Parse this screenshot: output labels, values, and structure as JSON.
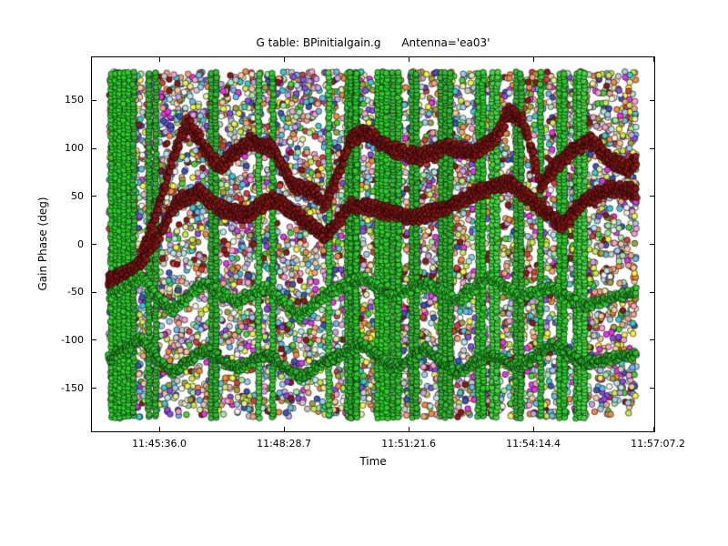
{
  "chart_data": {
    "type": "scatter",
    "title": "G table: BPinitialgain.g      Antenna='ea03'",
    "xlabel": "Time",
    "ylabel": "Gain Phase (deg)",
    "description": "Very dense multi-color calibration gain-phase scatter: thousands of small black-edged circles of random colors filling the axes from -180 to +180 deg, with bright green vertical stripes, two thick dark-red (maroon) wandering phase traces in the upper half, and bright green wandering traces in the lower half.",
    "y_ticks": [
      150,
      100,
      50,
      0,
      -50,
      -100,
      -150
    ],
    "ylim": [
      -196,
      196
    ],
    "x_ticks": {
      "labels": [
        "11:45:36.0",
        "11:48:28.7",
        "11:51:21.6",
        "11:54:14.4",
        "11:57:07.2"
      ],
      "fracs": [
        0.121,
        0.342,
        0.563,
        0.784,
        1.005
      ]
    },
    "x_data_range": [
      0.03,
      0.968
    ],
    "data_y_range": [
      -181,
      181
    ],
    "marker": {
      "shape": "circle",
      "radius_px": 3.3,
      "edge_color": "#000000",
      "edge_width": 0.6
    },
    "palette": [
      "#9ecae8",
      "#f4a07a",
      "#f7c59a",
      "#44d62c",
      "#c8e84a",
      "#f2f23d",
      "#e833e8",
      "#8a4ae8",
      "#3d52b8",
      "#3dc8c8",
      "#aee8e8",
      "#f2a0c8",
      "#d63d3d",
      "#8b1a1a",
      "#a0a03d",
      "#c8c8c8",
      "#f2f2e8",
      "#f28a3d",
      "#a0e8a0",
      "#c8a0e8",
      "#66b8e8",
      "#e8e8a0"
    ],
    "background_points": {
      "count": 7000,
      "seed": 42
    },
    "green_vertical_bars": {
      "count": 26,
      "seed": 7,
      "colors": [
        "#2ecc2e",
        "#44d644",
        "#33b833"
      ],
      "step_deg": 3.5
    },
    "series": [
      {
        "name": "maroon-phase-trace-upper",
        "color": "#8b1a1a",
        "strand_offset_deg": 4.5,
        "strands": 3,
        "waypoints": [
          [
            0.0,
            -38
          ],
          [
            0.055,
            -25
          ],
          [
            0.089,
            30
          ],
          [
            0.124,
            95
          ],
          [
            0.149,
            128
          ],
          [
            0.184,
            100
          ],
          [
            0.21,
            80
          ],
          [
            0.235,
            95
          ],
          [
            0.27,
            108
          ],
          [
            0.313,
            100
          ],
          [
            0.347,
            62
          ],
          [
            0.39,
            55
          ],
          [
            0.41,
            40
          ],
          [
            0.459,
            110
          ],
          [
            0.485,
            118
          ],
          [
            0.536,
            100
          ],
          [
            0.588,
            92
          ],
          [
            0.639,
            102
          ],
          [
            0.691,
            95
          ],
          [
            0.734,
            112
          ],
          [
            0.759,
            140
          ],
          [
            0.785,
            130
          ],
          [
            0.82,
            60
          ],
          [
            0.845,
            80
          ],
          [
            0.88,
            100
          ],
          [
            0.914,
            108
          ],
          [
            0.948,
            90
          ],
          [
            0.983,
            78
          ],
          [
            1.0,
            88
          ]
        ]
      },
      {
        "name": "maroon-phase-trace-lower",
        "color": "#8b1a1a",
        "strand_offset_deg": 4.5,
        "strands": 3,
        "waypoints": [
          [
            0.0,
            -38
          ],
          [
            0.05,
            -28
          ],
          [
            0.09,
            5
          ],
          [
            0.13,
            45
          ],
          [
            0.17,
            55
          ],
          [
            0.21,
            38
          ],
          [
            0.26,
            30
          ],
          [
            0.31,
            48
          ],
          [
            0.36,
            30
          ],
          [
            0.41,
            8
          ],
          [
            0.46,
            42
          ],
          [
            0.52,
            35
          ],
          [
            0.58,
            28
          ],
          [
            0.64,
            38
          ],
          [
            0.7,
            55
          ],
          [
            0.76,
            65
          ],
          [
            0.82,
            38
          ],
          [
            0.86,
            20
          ],
          [
            0.9,
            45
          ],
          [
            0.95,
            58
          ],
          [
            1.0,
            55
          ]
        ]
      },
      {
        "name": "green-phase-trace-upper",
        "color": "#33cc33",
        "strand_offset_deg": 4,
        "strands": 2,
        "waypoints": [
          [
            0,
            -55
          ],
          [
            0.06,
            -35
          ],
          [
            0.12,
            -70
          ],
          [
            0.18,
            -40
          ],
          [
            0.24,
            -60
          ],
          [
            0.3,
            -45
          ],
          [
            0.36,
            -75
          ],
          [
            0.42,
            -50
          ],
          [
            0.48,
            -35
          ],
          [
            0.54,
            -55
          ],
          [
            0.6,
            -40
          ],
          [
            0.66,
            -60
          ],
          [
            0.72,
            -35
          ],
          [
            0.78,
            -55
          ],
          [
            0.84,
            -45
          ],
          [
            0.9,
            -65
          ],
          [
            1.0,
            -50
          ]
        ]
      },
      {
        "name": "green-phase-trace-lower",
        "color": "#2ebb2e",
        "strand_offset_deg": 4,
        "strands": 2,
        "waypoints": [
          [
            0,
            -120
          ],
          [
            0.06,
            -100
          ],
          [
            0.12,
            -135
          ],
          [
            0.18,
            -110
          ],
          [
            0.24,
            -130
          ],
          [
            0.3,
            -115
          ],
          [
            0.36,
            -140
          ],
          [
            0.42,
            -120
          ],
          [
            0.48,
            -105
          ],
          [
            0.54,
            -130
          ],
          [
            0.6,
            -110
          ],
          [
            0.66,
            -135
          ],
          [
            0.72,
            -115
          ],
          [
            0.78,
            -130
          ],
          [
            0.84,
            -105
          ],
          [
            0.9,
            -125
          ],
          [
            1.0,
            -115
          ]
        ]
      }
    ],
    "axes_edge_color": "#000000",
    "background_color": "#ffffff"
  }
}
